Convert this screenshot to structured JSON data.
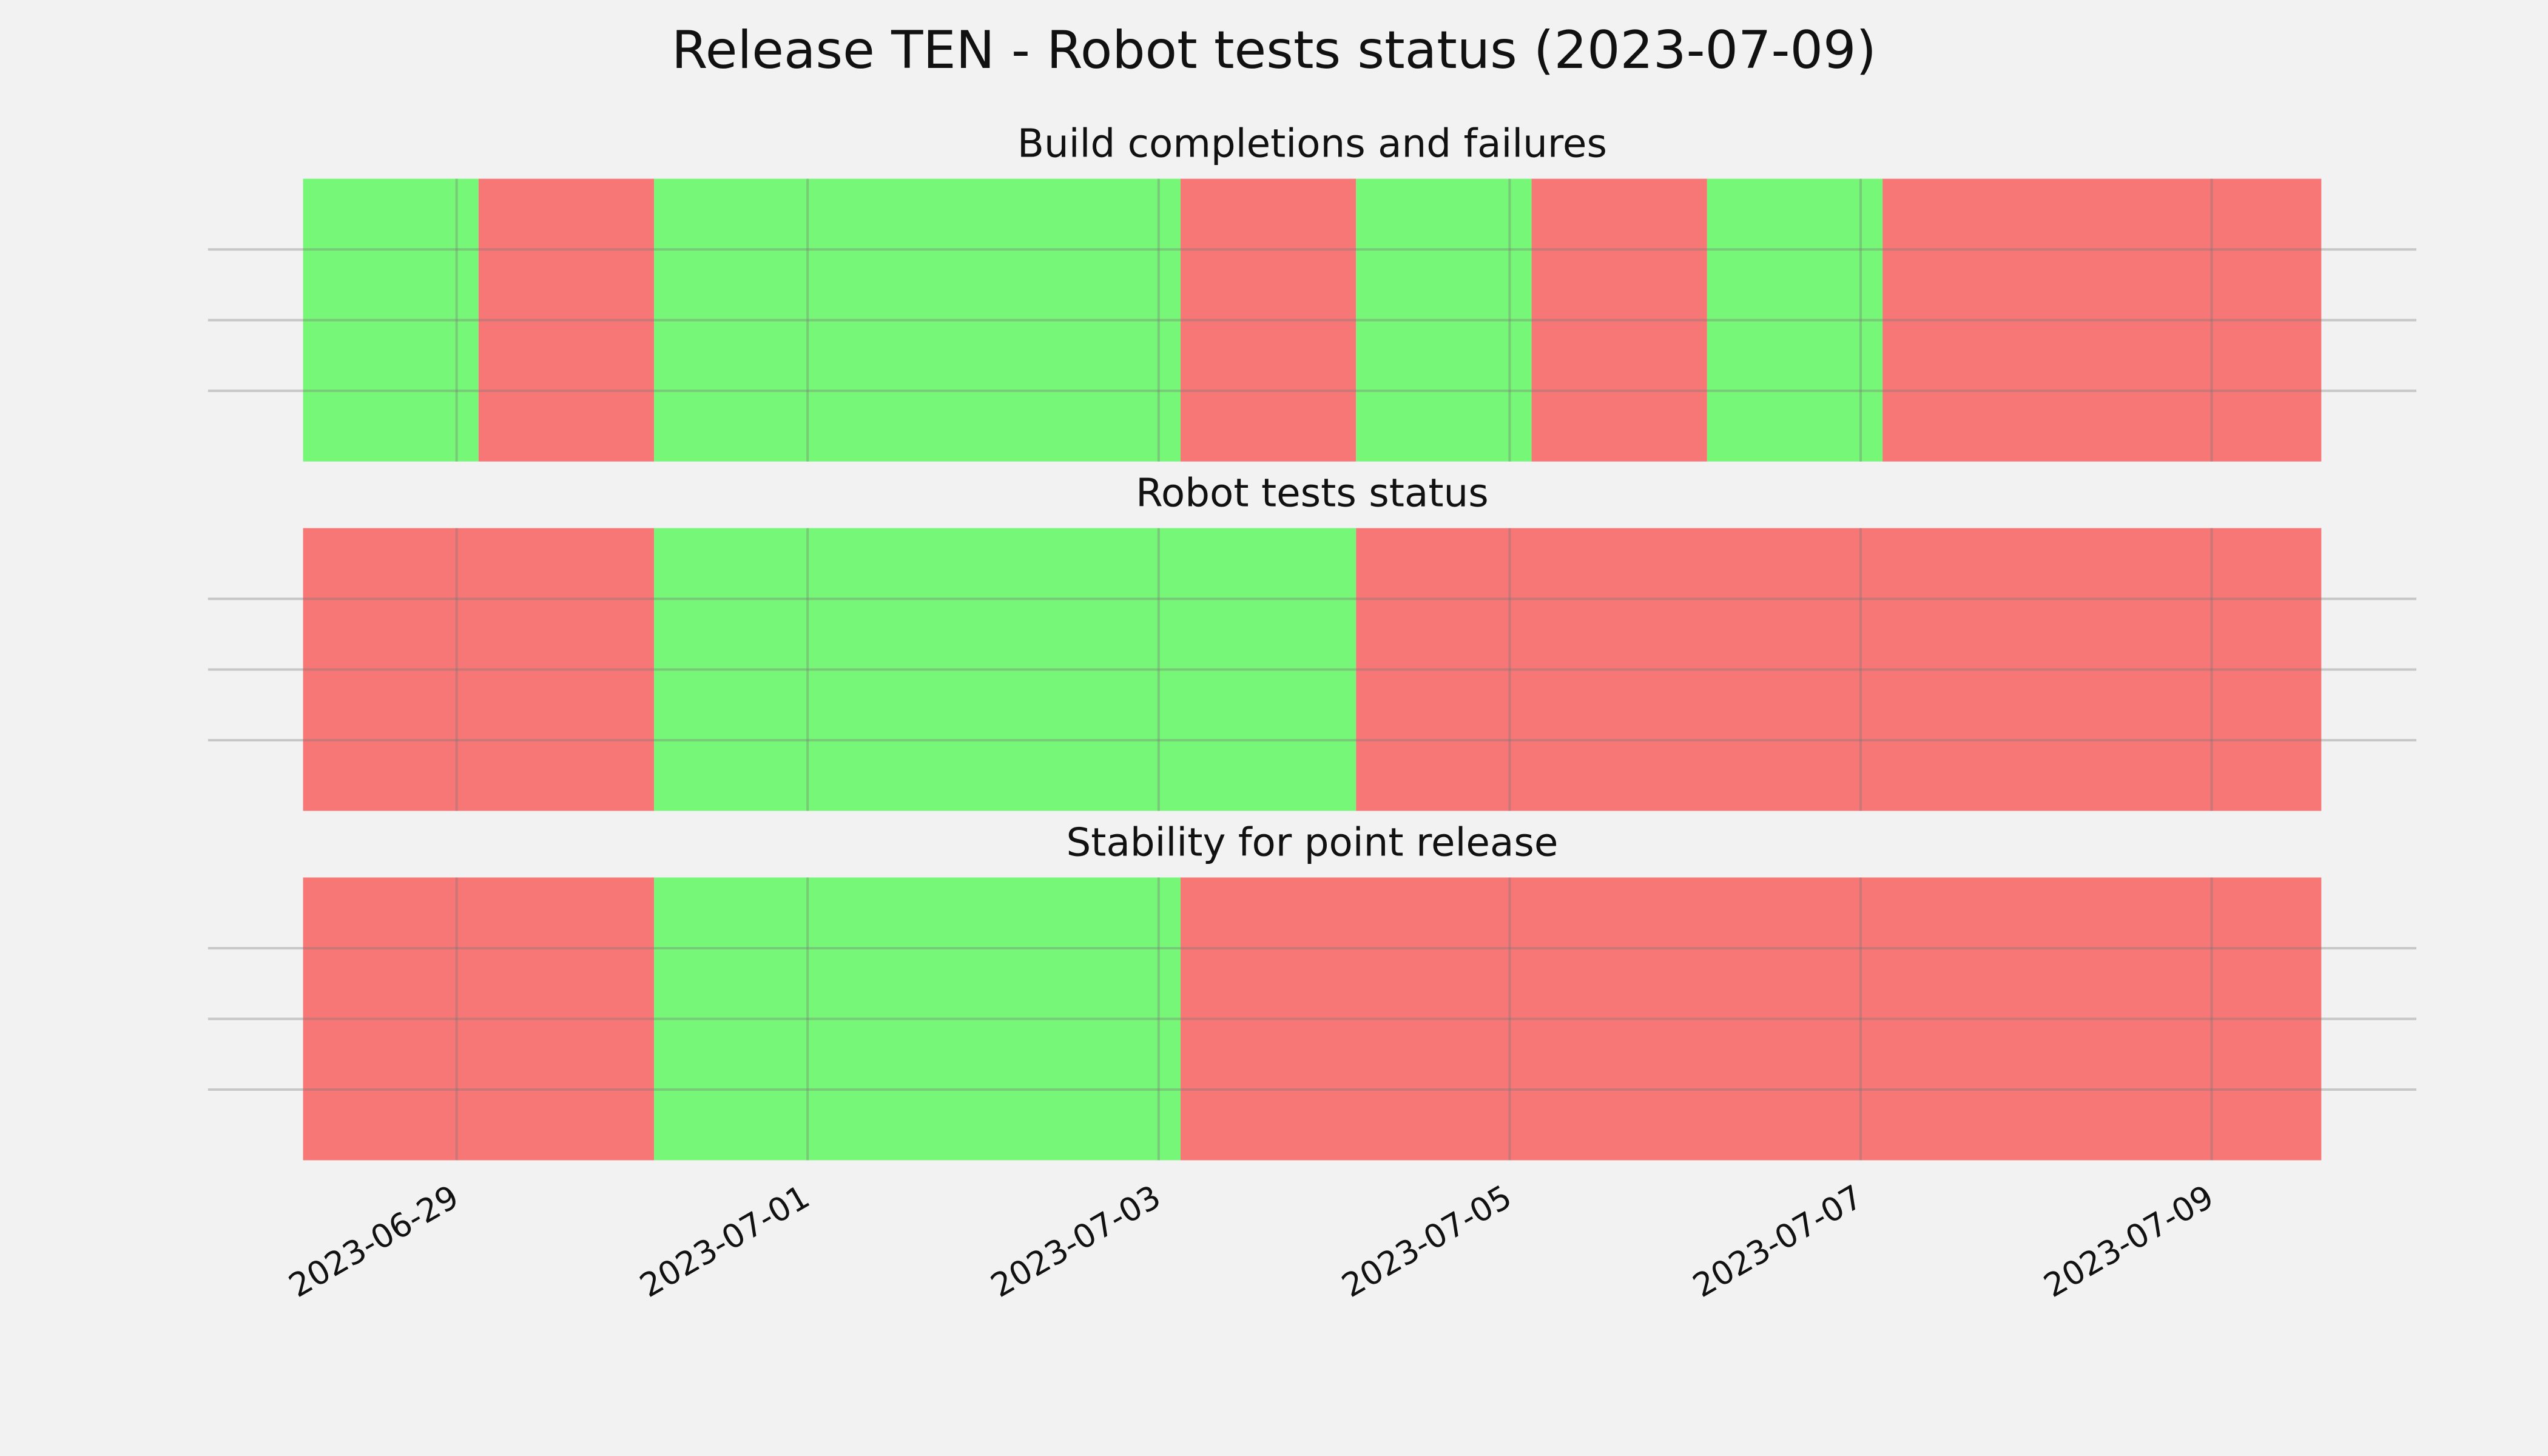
{
  "title": "Release TEN - Robot tests status (2023-07-09)",
  "chart_data": [
    {
      "type": "timeline",
      "title": "Build completions and failures",
      "segments": [
        {
          "start": "2023-06-28T03:00",
          "end": "2023-06-29T03:00",
          "color": "#77f777"
        },
        {
          "start": "2023-06-29T03:00",
          "end": "2023-06-30T03:00",
          "color": "#f77777"
        },
        {
          "start": "2023-06-30T03:00",
          "end": "2023-07-03T03:00",
          "color": "#77f777"
        },
        {
          "start": "2023-07-03T03:00",
          "end": "2023-07-04T03:00",
          "color": "#f77777"
        },
        {
          "start": "2023-07-04T03:00",
          "end": "2023-07-05T03:00",
          "color": "#77f777"
        },
        {
          "start": "2023-07-05T03:00",
          "end": "2023-07-06T03:00",
          "color": "#f77777"
        },
        {
          "start": "2023-07-06T03:00",
          "end": "2023-07-07T03:00",
          "color": "#77f777"
        },
        {
          "start": "2023-07-07T03:00",
          "end": "2023-07-09T15:00",
          "color": "#f77777"
        }
      ],
      "xlim": [
        "2023-06-27T14:00",
        "2023-07-10T04:00"
      ],
      "xticks": [
        "2023-06-29",
        "2023-07-01",
        "2023-07-03",
        "2023-07-05",
        "2023-07-07",
        "2023-07-09"
      ],
      "ylim": [
        0,
        1
      ],
      "yticks": [
        0.25,
        0.5,
        0.75
      ],
      "grid": true
    },
    {
      "type": "timeline",
      "title": "Robot tests status",
      "segments": [
        {
          "start": "2023-06-28T03:00",
          "end": "2023-06-30T03:00",
          "color": "#f77777"
        },
        {
          "start": "2023-06-30T03:00",
          "end": "2023-07-04T03:00",
          "color": "#77f777"
        },
        {
          "start": "2023-07-04T03:00",
          "end": "2023-07-09T15:00",
          "color": "#f77777"
        }
      ],
      "xlim": [
        "2023-06-27T14:00",
        "2023-07-10T04:00"
      ],
      "xticks": [
        "2023-06-29",
        "2023-07-01",
        "2023-07-03",
        "2023-07-05",
        "2023-07-07",
        "2023-07-09"
      ],
      "ylim": [
        0,
        1
      ],
      "yticks": [
        0.25,
        0.5,
        0.75
      ],
      "grid": true
    },
    {
      "type": "timeline",
      "title": "Stability for point release",
      "segments": [
        {
          "start": "2023-06-28T03:00",
          "end": "2023-06-30T03:00",
          "color": "#f77777"
        },
        {
          "start": "2023-06-30T03:00",
          "end": "2023-07-03T03:00",
          "color": "#77f777"
        },
        {
          "start": "2023-07-03T03:00",
          "end": "2023-07-09T15:00",
          "color": "#f77777"
        }
      ],
      "xlim": [
        "2023-06-27T14:00",
        "2023-07-10T04:00"
      ],
      "xticks": [
        "2023-06-29",
        "2023-07-01",
        "2023-07-03",
        "2023-07-05",
        "2023-07-07",
        "2023-07-09"
      ],
      "ylim": [
        0,
        1
      ],
      "yticks": [
        0.25,
        0.5,
        0.75
      ],
      "grid": true,
      "show_xtick_labels": true
    }
  ]
}
